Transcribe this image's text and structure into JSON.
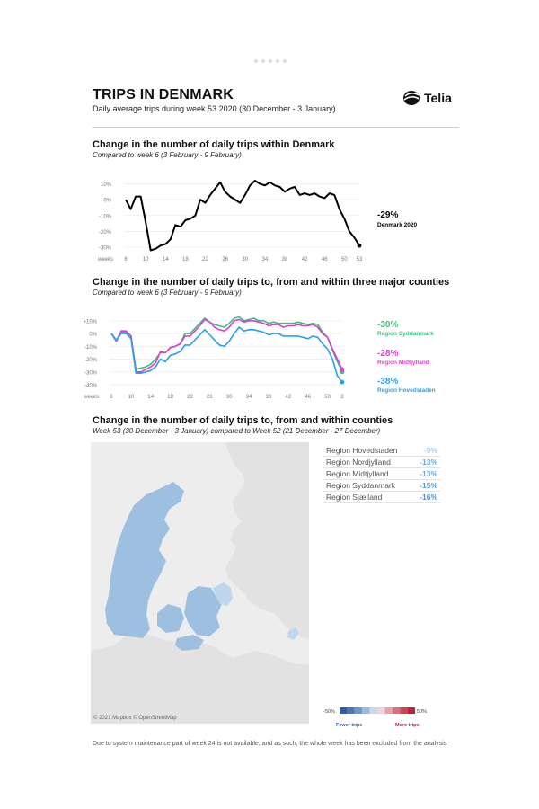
{
  "header": {
    "title": "TRIPS IN DENMARK",
    "subtitle": "Daily average trips during week 53 2020 (30 December - 3 January)",
    "logo_text": "Telia"
  },
  "sections": [
    {
      "title": "Change in the number of daily trips within Denmark",
      "subtitle": "Compared to week 6 (3 February - 9 February)"
    },
    {
      "title": "Change in the number of daily trips to, from and within three major counties",
      "subtitle": "Compared to week 6 (3 February - 9 February)"
    },
    {
      "title": "Change in the number of daily trips to, from and within counties",
      "subtitle": "Week 53 (30 December - 3 January) compared to Week 52 (21 December - 27 December)"
    }
  ],
  "chart_data": [
    {
      "type": "line",
      "xlabel": "weeks",
      "x_ticks": [
        "6",
        "10",
        "14",
        "18",
        "22",
        "26",
        "30",
        "34",
        "38",
        "42",
        "46",
        "50",
        "53"
      ],
      "y_ticks": [
        "10%",
        "0%",
        "-10%",
        "-20%",
        "-30%"
      ],
      "ylim": [
        -30,
        12
      ],
      "series": [
        {
          "name": "Denmark 2020",
          "end_value_label": "-29%",
          "color": "#000000",
          "x": [
            6,
            7,
            8,
            9,
            10,
            11,
            12,
            13,
            14,
            15,
            16,
            17,
            18,
            19,
            20,
            21,
            22,
            23,
            24,
            25,
            26,
            27,
            28,
            29,
            30,
            31,
            32,
            33,
            34,
            35,
            36,
            37,
            38,
            39,
            40,
            41,
            42,
            43,
            44,
            45,
            46,
            47,
            48,
            49,
            50,
            51,
            52,
            53
          ],
          "values": [
            0,
            -6,
            2,
            2,
            -14,
            -32,
            -31,
            -29,
            -28,
            -25,
            -16,
            -17,
            -13,
            -12,
            -10,
            0,
            -2,
            3,
            7,
            11,
            5,
            2,
            0,
            -2,
            3,
            9,
            12,
            10,
            9,
            11,
            9,
            8,
            5,
            7,
            8,
            3,
            4,
            3,
            4,
            2,
            1,
            4,
            3,
            -6,
            -12,
            -20,
            -24,
            -29
          ]
        }
      ]
    },
    {
      "type": "line",
      "xlabel": "weeks",
      "x_ticks": [
        "6",
        "10",
        "14",
        "18",
        "22",
        "26",
        "30",
        "34",
        "38",
        "42",
        "46",
        "50",
        "2"
      ],
      "y_ticks": [
        "+10%",
        "0%",
        "-10%",
        "-20%",
        "-30%",
        "-40%"
      ],
      "ylim": [
        -40,
        12
      ],
      "series": [
        {
          "name": "Region Syddanmark",
          "end_value_label": "-30%",
          "color": "#3dbd7d",
          "values": [
            0,
            -6,
            1,
            1,
            -2,
            -28,
            -27,
            -26,
            -24,
            -20,
            -15,
            -15,
            -11,
            -10,
            -8,
            0,
            0,
            4,
            8,
            12,
            9,
            7,
            6,
            5,
            8,
            12,
            13,
            10,
            11,
            12,
            10,
            10,
            8,
            9,
            8,
            8,
            8,
            8,
            9,
            8,
            7,
            8,
            7,
            1,
            -3,
            -13,
            -22,
            -30
          ]
        },
        {
          "name": "Region Midtjylland",
          "end_value_label": "-28%",
          "color": "#e03ccf",
          "values": [
            0,
            -6,
            2,
            2,
            -2,
            -30,
            -30,
            -28,
            -26,
            -23,
            -14,
            -15,
            -11,
            -10,
            -8,
            -2,
            -2,
            2,
            6,
            11,
            9,
            5,
            3,
            2,
            5,
            10,
            11,
            9,
            10,
            10,
            9,
            8,
            6,
            7,
            7,
            5,
            6,
            6,
            7,
            6,
            6,
            7,
            5,
            0,
            -3,
            -12,
            -20,
            -28
          ]
        },
        {
          "name": "Region Hovedstaden",
          "end_value_label": "-38%",
          "color": "#2b9fe8",
          "values": [
            0,
            -5,
            0,
            0,
            -4,
            -31,
            -31,
            -30,
            -29,
            -26,
            -20,
            -22,
            -17,
            -16,
            -14,
            -9,
            -9,
            -5,
            -1,
            3,
            -1,
            -5,
            -9,
            -10,
            -6,
            0,
            5,
            2,
            3,
            3,
            2,
            1,
            -1,
            0,
            0,
            -2,
            -2,
            -2,
            -2,
            -3,
            -4,
            -2,
            -3,
            -8,
            -12,
            -20,
            -33,
            -38
          ]
        }
      ]
    },
    {
      "type": "table",
      "rows": [
        {
          "region": "Region Hovedstaden",
          "value": "-9%",
          "color": "#a9cfee"
        },
        {
          "region": "Region Nordjylland",
          "value": "-13%",
          "color": "#6fa8d7"
        },
        {
          "region": "Region Midtjylland",
          "value": "-13%",
          "color": "#6fa8d7"
        },
        {
          "region": "Region Syddanmark",
          "value": "-15%",
          "color": "#5a97cc"
        },
        {
          "region": "Region Sjælland",
          "value": "-16%",
          "color": "#5190c8"
        }
      ],
      "scale": {
        "min_label": "-50%",
        "max_label": "50%",
        "left_label": "Fewer trips",
        "right_label": "More trips",
        "left_color": "#2d5fa0",
        "right_color": "#c21f3a"
      }
    }
  ],
  "map": {
    "attribution": "© 2021 Mapbox © OpenStreetMap"
  },
  "footnote": "Due to system maintenance part of week 24 is not available, and as such, the whole week has been excluded from the analysis",
  "colors": {
    "land": "#9ec0e0",
    "land_light": "#bed7ee",
    "sea": "#ededed",
    "neighbour": "#e2e2e2"
  }
}
